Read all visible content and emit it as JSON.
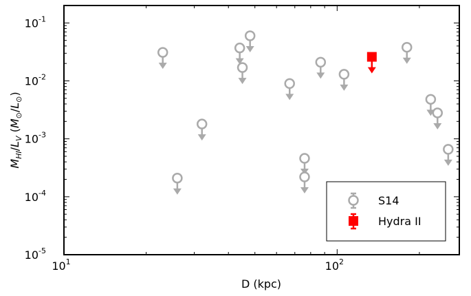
{
  "chart_data": {
    "type": "scatter",
    "xlabel": "D (kpc)",
    "ylabel_parts": {
      "m": "M",
      "m_sub": "HI",
      "slash": "/",
      "l": "L",
      "l_sub": "V",
      "unit_open": " (",
      "unit_m": "M",
      "unit_m_sub": "⊙",
      "unit_slash": "/",
      "unit_l": "L",
      "unit_l_sub": "⊙",
      "unit_close": ")"
    },
    "x_scale": "log",
    "y_scale": "log",
    "xlim": [
      10,
      280
    ],
    "ylim": [
      1e-05,
      0.2
    ],
    "x_ticks": [
      {
        "value": 10,
        "base": "10",
        "exp": "1"
      },
      {
        "value": 100,
        "base": "10",
        "exp": "2"
      }
    ],
    "y_ticks": [
      {
        "value": 1e-05,
        "base": "10",
        "exp": "-5"
      },
      {
        "value": 0.0001,
        "base": "10",
        "exp": "-4"
      },
      {
        "value": 0.001,
        "base": "10",
        "exp": "-3"
      },
      {
        "value": 0.01,
        "base": "10",
        "exp": "-2"
      },
      {
        "value": 0.1,
        "base": "10",
        "exp": "-1"
      }
    ],
    "grid": false,
    "legend_position": "lower-right",
    "series": [
      {
        "name": "S14",
        "marker": "open-circle",
        "color": "#aaaaaa",
        "upper_limits": true,
        "points": [
          {
            "x": 23,
            "y": 0.031
          },
          {
            "x": 26,
            "y": 0.00021
          },
          {
            "x": 32,
            "y": 0.0018
          },
          {
            "x": 44,
            "y": 0.037
          },
          {
            "x": 45,
            "y": 0.017
          },
          {
            "x": 48,
            "y": 0.06
          },
          {
            "x": 67,
            "y": 0.009
          },
          {
            "x": 76,
            "y": 0.00046
          },
          {
            "x": 76,
            "y": 0.00022
          },
          {
            "x": 87,
            "y": 0.021
          },
          {
            "x": 106,
            "y": 0.013
          },
          {
            "x": 180,
            "y": 0.038
          },
          {
            "x": 220,
            "y": 0.0048
          },
          {
            "x": 233,
            "y": 0.0028
          },
          {
            "x": 255,
            "y": 0.00066
          }
        ]
      },
      {
        "name": "Hydra II",
        "marker": "filled-square",
        "color": "#ff0000",
        "upper_limits": true,
        "points": [
          {
            "x": 134,
            "y": 0.026
          }
        ]
      }
    ]
  }
}
